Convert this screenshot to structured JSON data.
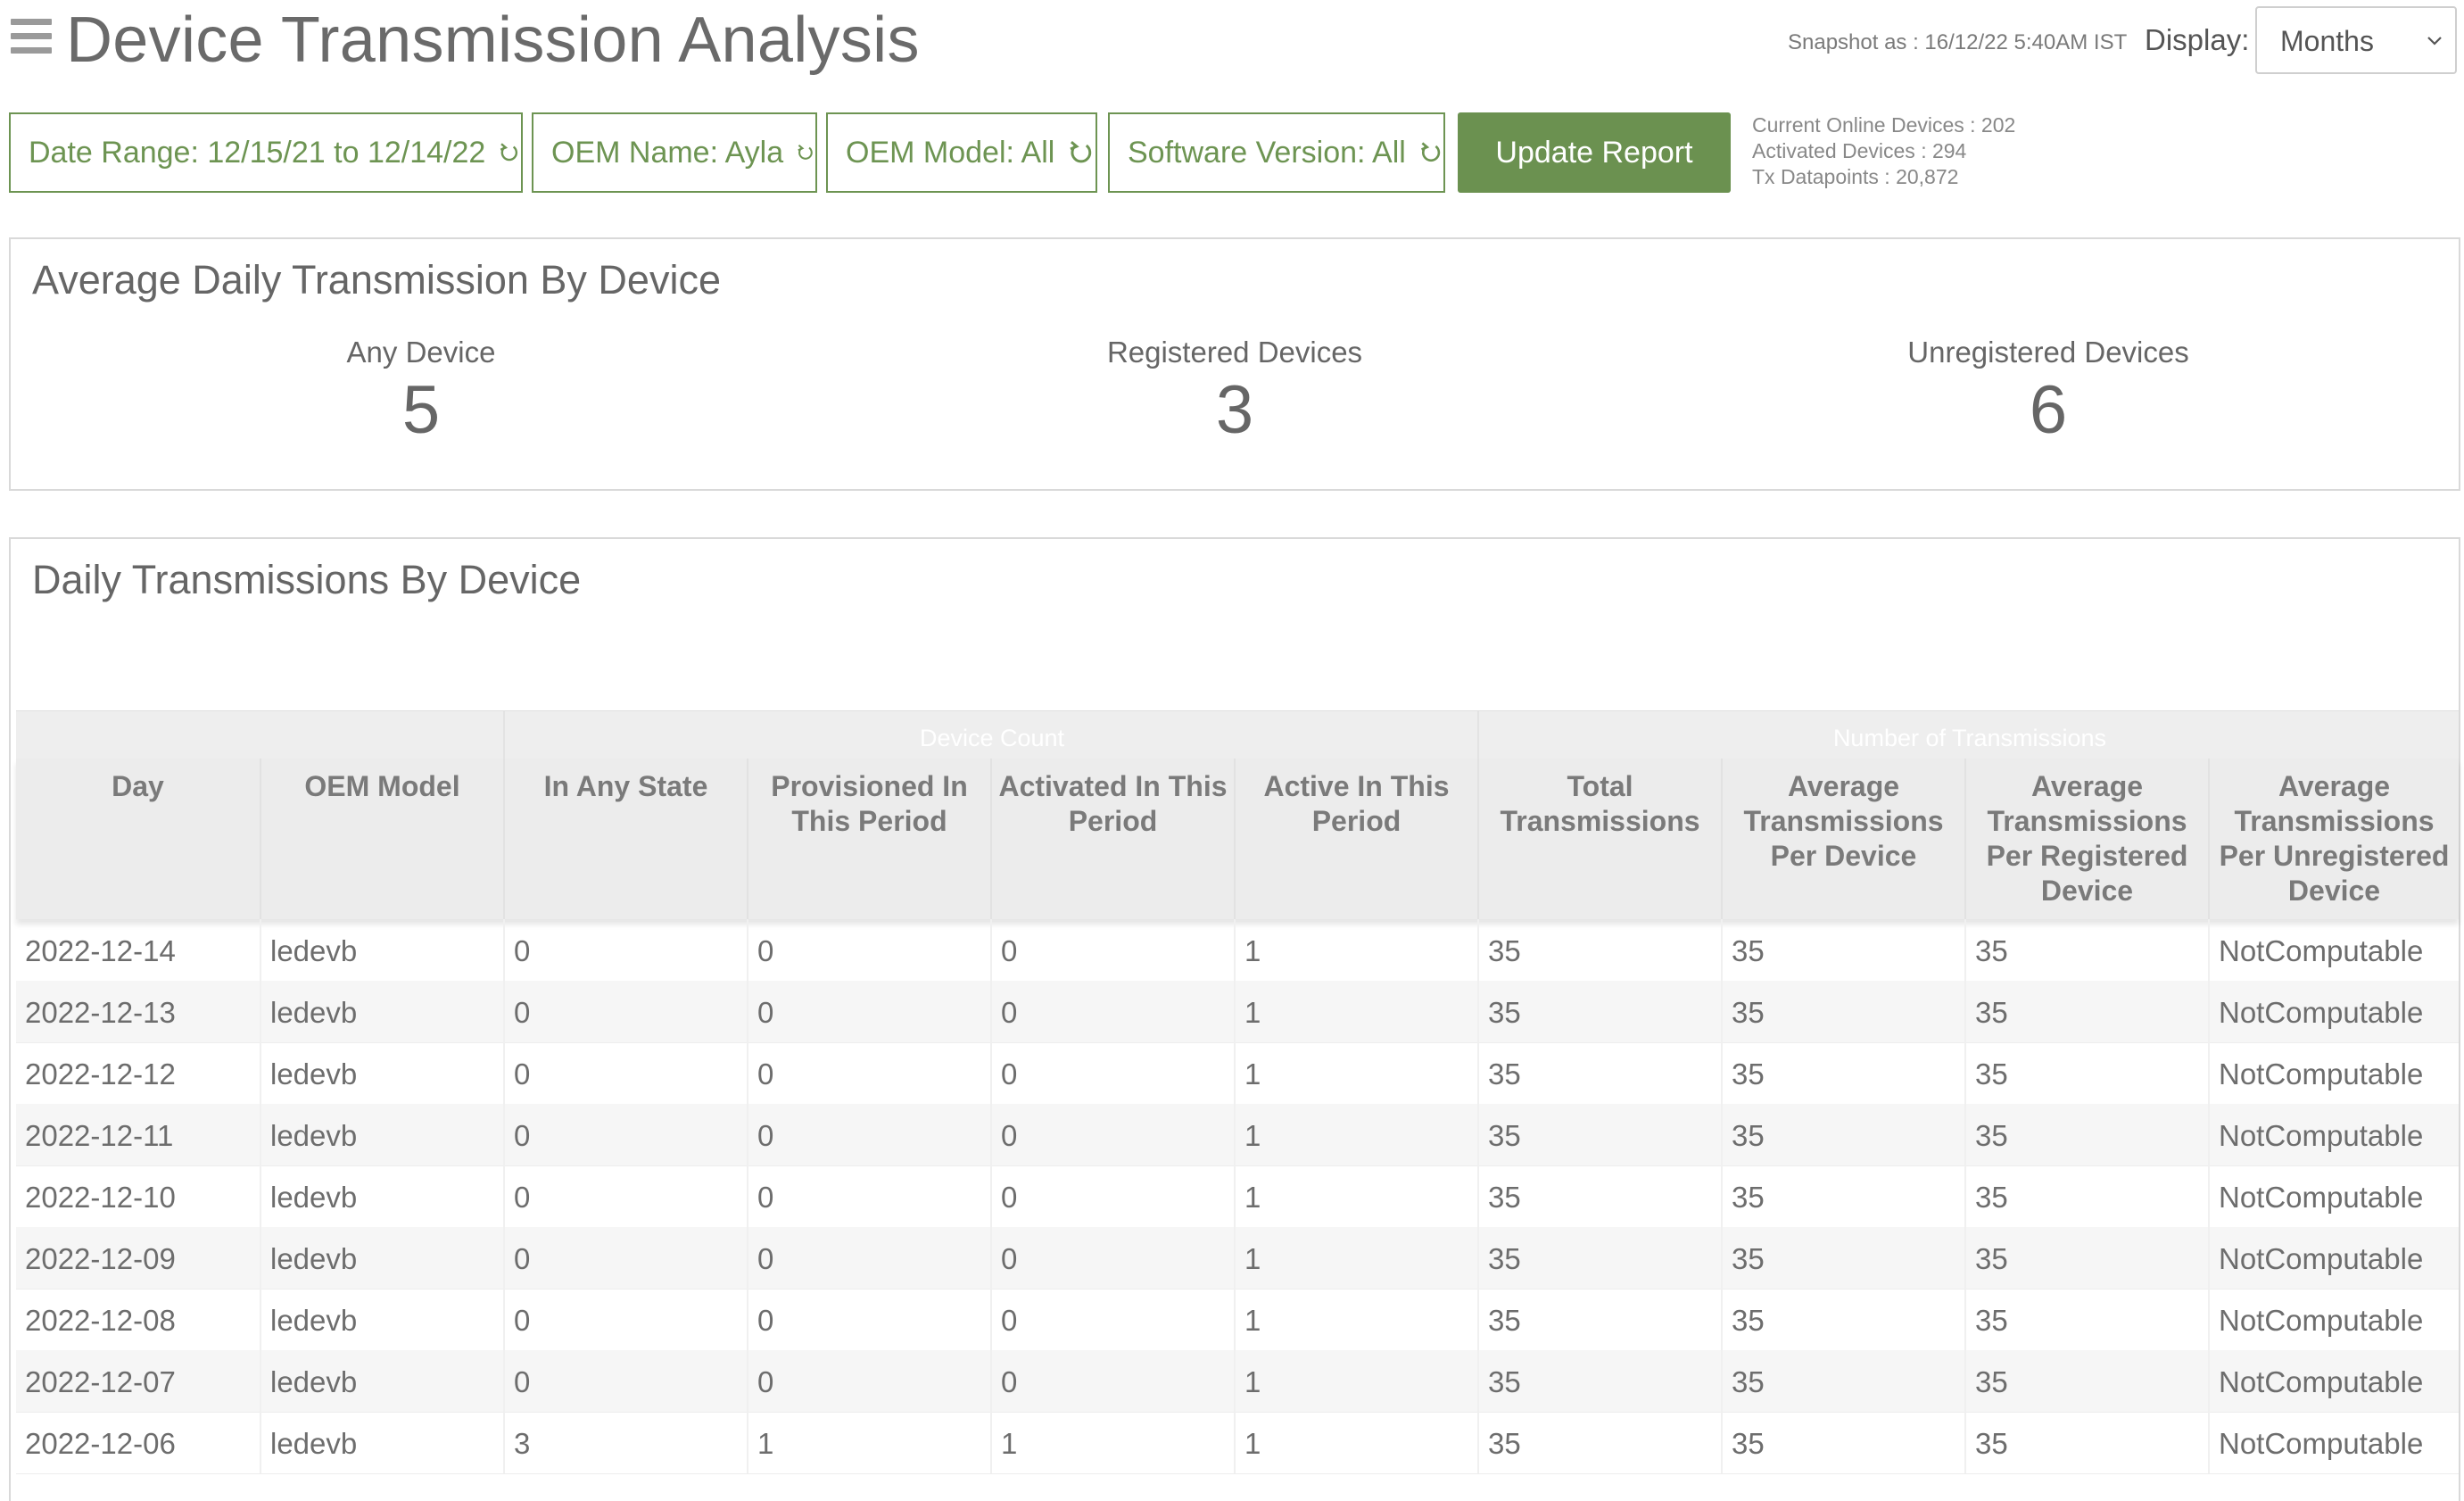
{
  "page": {
    "title": "Device Transmission Analysis",
    "snapshot": "Snapshot as : 16/12/22 5:40AM IST",
    "display_label": "Display:",
    "display_value": "Months"
  },
  "filters": {
    "date_range": "Date Range: 12/15/21 to 12/14/22",
    "oem_name": "OEM Name: Ayla",
    "oem_model": "OEM Model: All",
    "software_version": "Software Version: All",
    "update_button": "Update Report"
  },
  "stats": {
    "online": "Current Online Devices : 202",
    "activated": "Activated Devices : 294",
    "datapoints": "Tx Datapoints : 20,872"
  },
  "average_card": {
    "title": "Average Daily Transmission By Device",
    "metrics": [
      {
        "label": "Any Device",
        "value": "5"
      },
      {
        "label": "Registered Devices",
        "value": "3"
      },
      {
        "label": "Unregistered Devices",
        "value": "6"
      }
    ]
  },
  "daily_card": {
    "title": "Daily Transmissions By Device",
    "groups": [
      "Device Count",
      "Number of Transmissions"
    ],
    "columns": [
      "Day",
      "OEM Model",
      "In Any State",
      "Provisioned In This Period",
      "Activated In This Period",
      "Active In This Period",
      "Total Transmissions",
      "Average Transmissions Per Device",
      "Average Transmissions Per Registered Device",
      "Average Transmissions Per Unregistered Device"
    ],
    "rows": [
      [
        "2022-12-14",
        "ledevb",
        "0",
        "0",
        "0",
        "1",
        "35",
        "35",
        "35",
        "NotComputable"
      ],
      [
        "2022-12-13",
        "ledevb",
        "0",
        "0",
        "0",
        "1",
        "35",
        "35",
        "35",
        "NotComputable"
      ],
      [
        "2022-12-12",
        "ledevb",
        "0",
        "0",
        "0",
        "1",
        "35",
        "35",
        "35",
        "NotComputable"
      ],
      [
        "2022-12-11",
        "ledevb",
        "0",
        "0",
        "0",
        "1",
        "35",
        "35",
        "35",
        "NotComputable"
      ],
      [
        "2022-12-10",
        "ledevb",
        "0",
        "0",
        "0",
        "1",
        "35",
        "35",
        "35",
        "NotComputable"
      ],
      [
        "2022-12-09",
        "ledevb",
        "0",
        "0",
        "0",
        "1",
        "35",
        "35",
        "35",
        "NotComputable"
      ],
      [
        "2022-12-08",
        "ledevb",
        "0",
        "0",
        "0",
        "1",
        "35",
        "35",
        "35",
        "NotComputable"
      ],
      [
        "2022-12-07",
        "ledevb",
        "0",
        "0",
        "0",
        "1",
        "35",
        "35",
        "35",
        "NotComputable"
      ],
      [
        "2022-12-06",
        "ledevb",
        "3",
        "1",
        "1",
        "1",
        "35",
        "35",
        "35",
        "NotComputable"
      ]
    ]
  },
  "colors": {
    "accent_green": "#6b9150",
    "text_gray": "#666666"
  }
}
